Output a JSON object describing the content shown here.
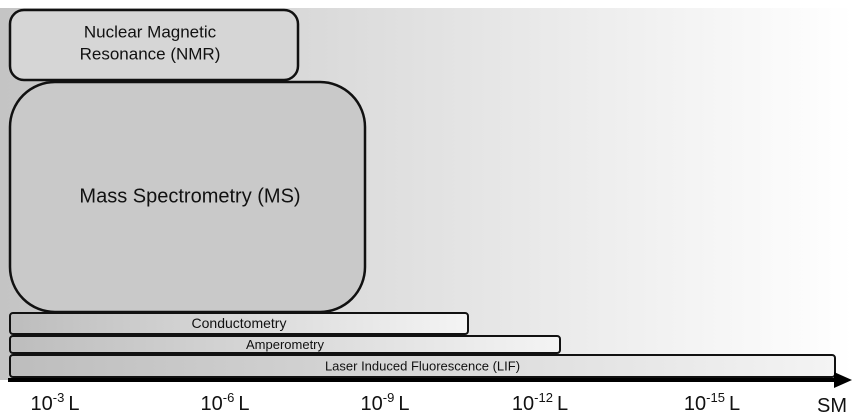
{
  "boxes": [
    {
      "label": [
        "Nuclear Magnetic",
        "Resonance (NMR)"
      ]
    },
    {
      "label": [
        "Mass Spectrometry (MS)"
      ]
    }
  ],
  "bars": [
    {
      "label": "Conductometry"
    },
    {
      "label": "Amperometry"
    },
    {
      "label": "Laser Induced Fluorescence (LIF)"
    }
  ],
  "scale": {
    "ticks": [
      {
        "base": "10",
        "exp": "-3",
        "unit": "L"
      },
      {
        "base": "10",
        "exp": "-6",
        "unit": "L"
      },
      {
        "base": "10",
        "exp": "-9",
        "unit": "L"
      },
      {
        "base": "10",
        "exp": "-12",
        "unit": "L"
      },
      {
        "base": "10",
        "exp": "-15",
        "unit": "L"
      }
    ],
    "end": "SM"
  }
}
